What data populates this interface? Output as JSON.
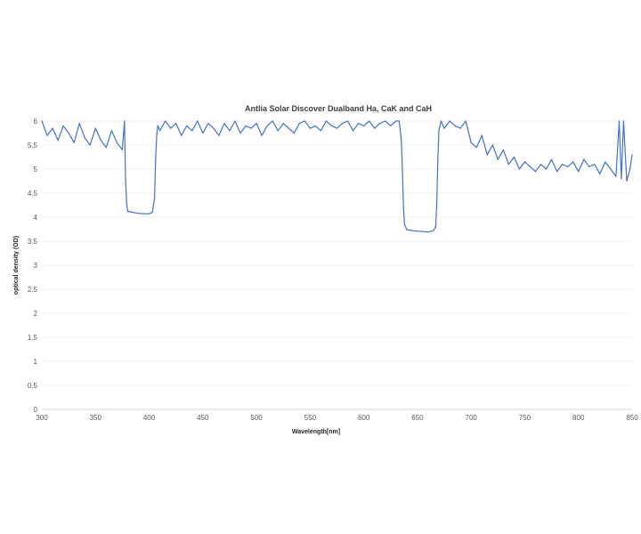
{
  "chart_data": {
    "type": "line",
    "title": "Antlia Solar Discover Dualband Ha, CaK and CaH",
    "xlabel": "Wavelength[nm]",
    "ylabel": "optical density (OD)",
    "xlim": [
      300,
      850
    ],
    "ylim": [
      0,
      6
    ],
    "x_ticks": [
      "300",
      "350",
      "400",
      "450",
      "500",
      "550",
      "600",
      "650",
      "700",
      "750",
      "800",
      "850"
    ],
    "y_ticks": [
      "0",
      "0.5",
      "1",
      "1.5",
      "2",
      "2.5",
      "3",
      "3.5",
      "4",
      "4.5",
      "5",
      "5.5",
      "6"
    ],
    "grid": "horizontal",
    "legend": "none",
    "line_color": "#4472c4",
    "series": [
      {
        "x": [
          300,
          305,
          310,
          315,
          320,
          325,
          330,
          335,
          340,
          345,
          350,
          355,
          360,
          365,
          370,
          375,
          377,
          378,
          379,
          380,
          385,
          390,
          395,
          400,
          403,
          405,
          406,
          407,
          408,
          410,
          415,
          420,
          425,
          430,
          435,
          440,
          445,
          450,
          455,
          460,
          465,
          470,
          475,
          480,
          485,
          490,
          495,
          500,
          505,
          510,
          515,
          520,
          525,
          530,
          535,
          540,
          545,
          550,
          555,
          560,
          565,
          570,
          575,
          580,
          585,
          590,
          595,
          600,
          605,
          610,
          615,
          620,
          625,
          630,
          633,
          635,
          636,
          637,
          638,
          640,
          645,
          650,
          655,
          660,
          665,
          667,
          668,
          669,
          670,
          672,
          675,
          680,
          685,
          690,
          695,
          700,
          705,
          710,
          715,
          720,
          725,
          730,
          735,
          740,
          745,
          750,
          755,
          760,
          765,
          770,
          775,
          780,
          785,
          790,
          795,
          800,
          805,
          810,
          815,
          820,
          825,
          830,
          835,
          838,
          840,
          842,
          845,
          848,
          850
        ],
        "y": [
          6.0,
          5.7,
          5.85,
          5.6,
          5.9,
          5.75,
          5.55,
          5.95,
          5.65,
          5.5,
          5.85,
          5.6,
          5.45,
          5.8,
          5.55,
          5.4,
          6.0,
          4.8,
          4.3,
          4.12,
          4.1,
          4.08,
          4.07,
          4.07,
          4.1,
          4.4,
          5.2,
          5.7,
          5.9,
          5.8,
          6.0,
          5.85,
          5.95,
          5.7,
          5.9,
          5.8,
          6.0,
          5.75,
          5.95,
          5.85,
          5.7,
          5.95,
          5.8,
          6.0,
          5.75,
          5.9,
          5.85,
          5.95,
          5.7,
          5.9,
          6.0,
          5.8,
          5.95,
          5.85,
          5.75,
          5.95,
          6.0,
          5.85,
          5.9,
          5.8,
          6.0,
          5.9,
          5.85,
          5.95,
          6.0,
          5.8,
          5.95,
          5.9,
          6.0,
          5.85,
          5.95,
          6.0,
          5.9,
          6.0,
          6.0,
          5.6,
          5.0,
          4.2,
          3.85,
          3.74,
          3.72,
          3.71,
          3.7,
          3.69,
          3.72,
          3.8,
          4.3,
          5.2,
          5.8,
          6.0,
          5.85,
          6.0,
          5.9,
          5.85,
          6.0,
          5.55,
          5.45,
          5.7,
          5.3,
          5.5,
          5.2,
          5.4,
          5.1,
          5.25,
          5.0,
          5.15,
          5.05,
          4.95,
          5.1,
          5.0,
          5.2,
          4.95,
          5.1,
          5.05,
          5.15,
          4.95,
          5.2,
          5.05,
          5.1,
          4.9,
          5.15,
          5.0,
          4.85,
          6.0,
          4.8,
          6.0,
          4.75,
          5.0,
          5.3
        ]
      }
    ]
  }
}
